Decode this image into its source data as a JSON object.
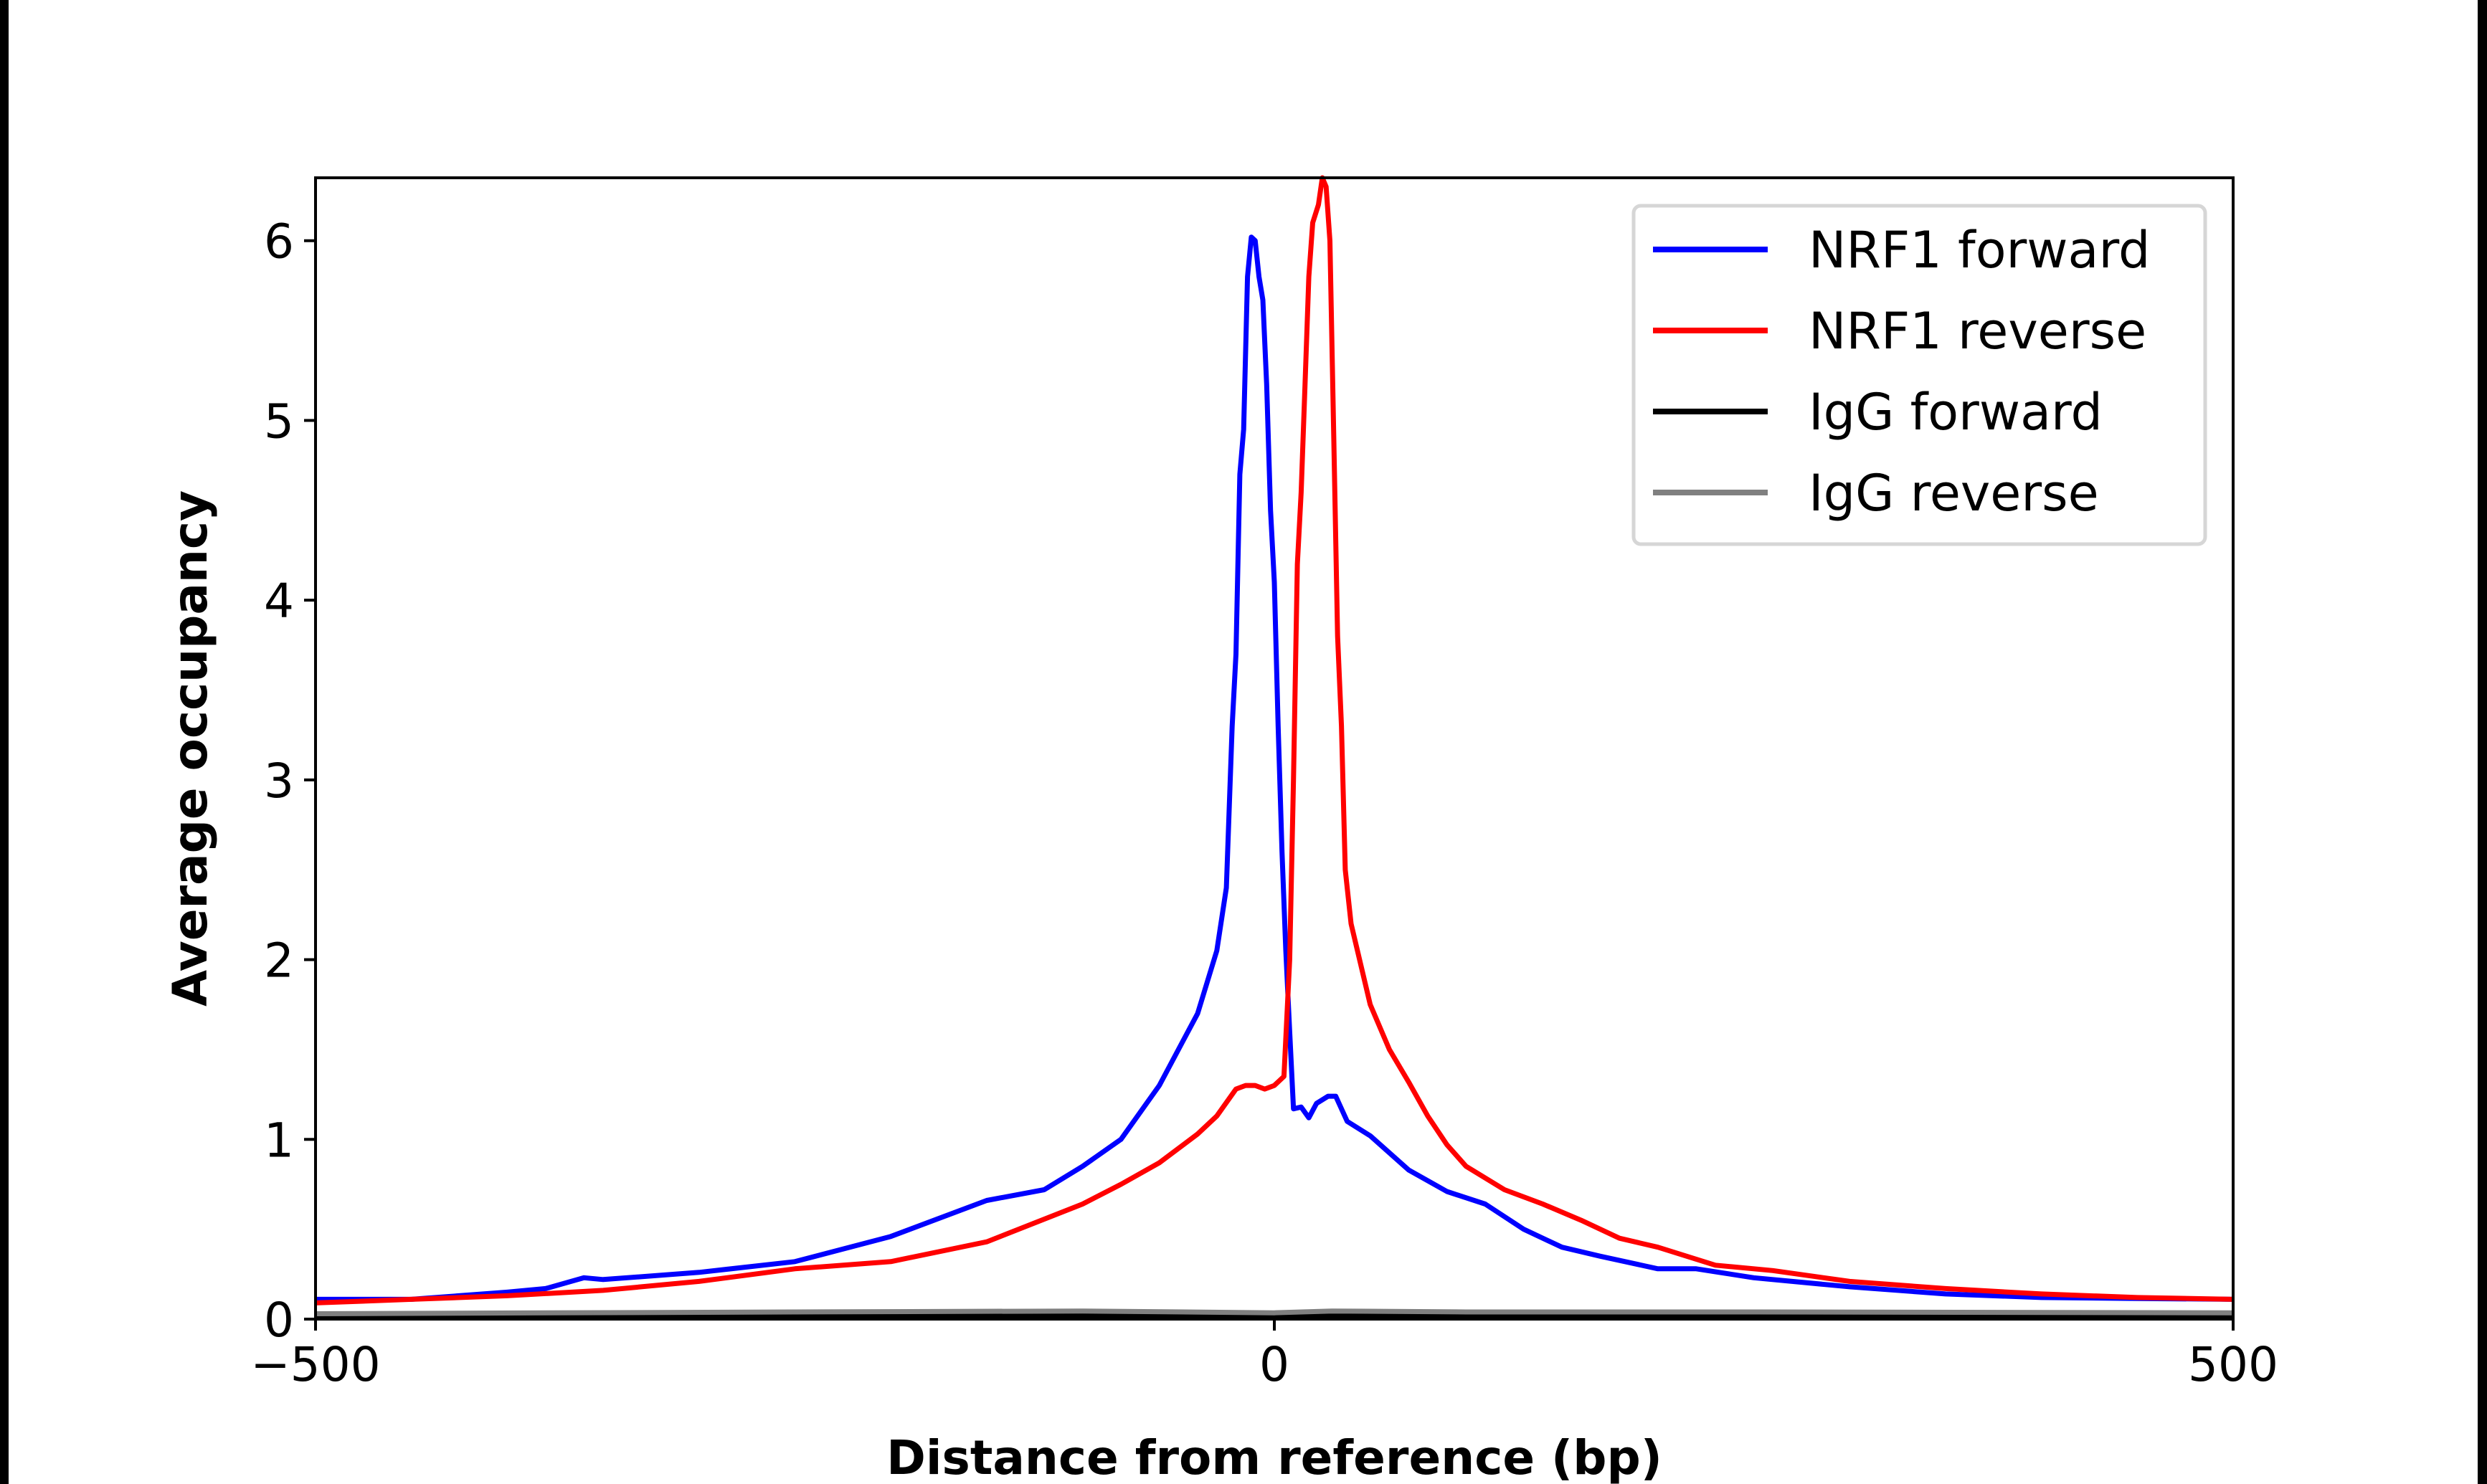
{
  "chart_data": {
    "type": "line",
    "title": "",
    "xlabel": "Distance from reference (bp)",
    "ylabel": "Average occupancy",
    "xlim": [
      -500,
      500
    ],
    "ylim": [
      0,
      6.35
    ],
    "xticks": [
      -500,
      0,
      500
    ],
    "xtick_labels": [
      "−500",
      "0",
      "500"
    ],
    "yticks": [
      0,
      1,
      2,
      3,
      4,
      5,
      6
    ],
    "ytick_labels": [
      "0",
      "1",
      "2",
      "3",
      "4",
      "5",
      "6"
    ],
    "grid": false,
    "legend_position": "top-right",
    "series": [
      {
        "name": "NRF1 forward",
        "color": "#0000ff",
        "x": [
          -500,
          -450,
          -400,
          -380,
          -360,
          -350,
          -300,
          -250,
          -200,
          -150,
          -120,
          -100,
          -80,
          -60,
          -40,
          -30,
          -25,
          -22,
          -20,
          -18,
          -16,
          -14,
          -12,
          -10,
          -8,
          -6,
          -4,
          -2,
          0,
          2,
          4,
          6,
          8,
          10,
          14,
          18,
          22,
          28,
          32,
          38,
          50,
          70,
          90,
          110,
          130,
          150,
          170,
          200,
          220,
          250,
          300,
          350,
          400,
          450,
          500
        ],
        "y": [
          0.11,
          0.11,
          0.15,
          0.17,
          0.23,
          0.22,
          0.26,
          0.32,
          0.46,
          0.66,
          0.72,
          0.85,
          1.0,
          1.3,
          1.7,
          2.05,
          2.4,
          3.3,
          3.7,
          4.7,
          4.95,
          5.8,
          6.02,
          6.0,
          5.8,
          5.67,
          5.2,
          4.5,
          4.1,
          3.3,
          2.6,
          2.05,
          1.6,
          1.17,
          1.18,
          1.12,
          1.2,
          1.24,
          1.24,
          1.1,
          1.02,
          0.83,
          0.71,
          0.64,
          0.5,
          0.4,
          0.35,
          0.28,
          0.28,
          0.23,
          0.18,
          0.14,
          0.12,
          0.115,
          0.11
        ]
      },
      {
        "name": "NRF1 reverse",
        "color": "#ff0000",
        "x": [
          -500,
          -450,
          -400,
          -350,
          -300,
          -250,
          -200,
          -150,
          -100,
          -80,
          -60,
          -40,
          -30,
          -20,
          -15,
          -10,
          -5,
          0,
          5,
          8,
          10,
          12,
          14,
          16,
          18,
          20,
          23,
          25,
          27,
          29,
          31,
          33,
          35,
          37,
          40,
          50,
          60,
          70,
          80,
          90,
          100,
          120,
          140,
          160,
          180,
          200,
          230,
          260,
          300,
          350,
          400,
          450,
          500
        ],
        "y": [
          0.09,
          0.11,
          0.13,
          0.16,
          0.21,
          0.28,
          0.32,
          0.43,
          0.64,
          0.75,
          0.87,
          1.03,
          1.13,
          1.28,
          1.3,
          1.3,
          1.28,
          1.3,
          1.35,
          2.0,
          3.0,
          4.2,
          4.6,
          5.2,
          5.8,
          6.1,
          6.2,
          6.35,
          6.3,
          6.0,
          4.9,
          3.8,
          3.3,
          2.5,
          2.2,
          1.75,
          1.5,
          1.32,
          1.13,
          0.97,
          0.85,
          0.72,
          0.64,
          0.55,
          0.45,
          0.4,
          0.3,
          0.27,
          0.21,
          0.17,
          0.14,
          0.12,
          0.11
        ]
      },
      {
        "name": "IgG forward",
        "color": "#000000",
        "x": [
          -500,
          -250,
          0,
          250,
          500
        ],
        "y": [
          0.02,
          0.02,
          0.02,
          0.02,
          0.02
        ]
      },
      {
        "name": "IgG reverse",
        "color": "#808080",
        "x": [
          -500,
          -250,
          -100,
          0,
          30,
          100,
          250,
          500
        ],
        "y": [
          0.03,
          0.04,
          0.045,
          0.035,
          0.045,
          0.04,
          0.04,
          0.035
        ]
      }
    ]
  }
}
